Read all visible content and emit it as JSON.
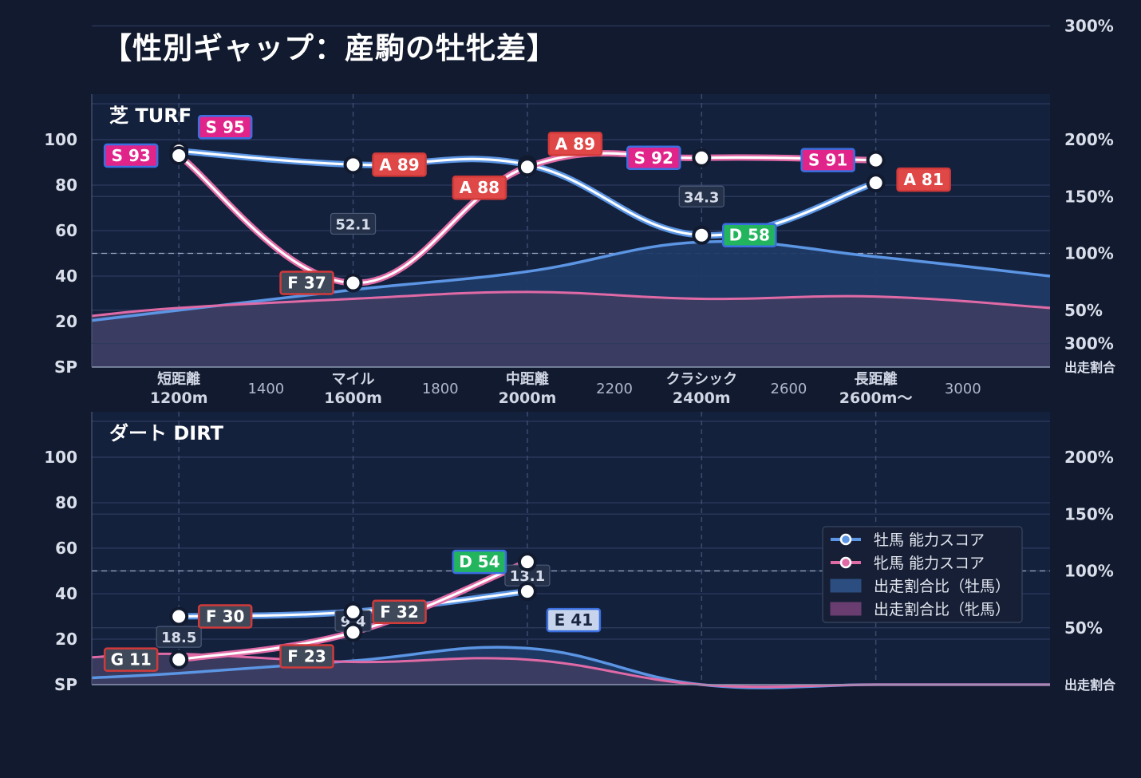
{
  "title": "【性別ギャップ：産駒の牡牝差】",
  "colors": {
    "background": "#111a2e",
    "panel": "#13213d",
    "male_line": "#5b95e3",
    "female_line": "#e06aa6",
    "male_area": "#1f3a66",
    "female_area": "#3e3d62",
    "rank_S": "#e0248a",
    "rank_A": "#e04848",
    "rank_D": "#22b55e",
    "rank_E": "#c7d4ec",
    "rank_F": "#3f4959",
    "rank_G": "#3f4959"
  },
  "legend": {
    "items": [
      {
        "label": "牡馬 能力スコア",
        "kind": "line",
        "color": "#5b95e3"
      },
      {
        "label": "牝馬 能力スコア",
        "kind": "line",
        "color": "#e06aa6"
      },
      {
        "label": "出走割合比（牡馬）",
        "kind": "area",
        "color": "#2c4d80"
      },
      {
        "label": "出走割合比（牝馬）",
        "kind": "area",
        "color": "#6a3d70"
      }
    ]
  },
  "chart_data": [
    {
      "type": "line",
      "panel_title": "芝 TURF",
      "x_ticks_major": [
        {
          "x": 1200,
          "line1": "短距離",
          "line2": "1200m"
        },
        {
          "x": 1600,
          "line1": "マイル",
          "line2": "1600m"
        },
        {
          "x": 2000,
          "line1": "中距離",
          "line2": "2000m"
        },
        {
          "x": 2400,
          "line1": "クラシック",
          "line2": "2400m"
        },
        {
          "x": 2800,
          "line1": "長距離",
          "line2": "2600m〜"
        }
      ],
      "x_ticks_minor": [
        {
          "x": 1400,
          "label": "1400"
        },
        {
          "x": 1800,
          "label": "1800"
        },
        {
          "x": 2200,
          "label": "2200"
        },
        {
          "x": 2600,
          "label": "2600"
        },
        {
          "x": 3000,
          "label": "3000"
        }
      ],
      "xlim": [
        1000,
        3200
      ],
      "ylim": [
        0,
        120
      ],
      "y_ticks": [
        "SP",
        "20",
        "40",
        "60",
        "80",
        "100"
      ],
      "y2_ticks": [
        {
          "value": 300,
          "label": "300%"
        },
        {
          "value": 200,
          "label": "200%"
        },
        {
          "value": 150,
          "label": "150%"
        },
        {
          "value": 100,
          "label": "100%"
        },
        {
          "value": 50,
          "label": "50%"
        }
      ],
      "y2_label": "出走割合",
      "reference_line_y2": 100,
      "male_score": {
        "x": [
          1200,
          1600,
          2000,
          2400,
          2800
        ],
        "values": [
          95,
          89,
          89,
          58,
          81
        ],
        "ranks": [
          "S",
          "A",
          "A",
          "D",
          "A"
        ]
      },
      "female_score": {
        "x": [
          1200,
          1600,
          2000,
          2400,
          2800
        ],
        "values": [
          93,
          37,
          88,
          92,
          91
        ],
        "ranks": [
          "S",
          "F",
          "A",
          "S",
          "S"
        ]
      },
      "male_ratio": {
        "x": [
          1000,
          1200,
          1600,
          2000,
          2400,
          2800,
          3200
        ],
        "values": [
          41,
          50,
          68,
          84,
          110,
          97,
          80
        ]
      },
      "female_ratio": {
        "x": [
          1000,
          1200,
          1600,
          2000,
          2400,
          2800,
          3200
        ],
        "values": [
          45,
          52,
          60,
          66,
          60,
          62,
          52
        ]
      },
      "gap_labels": [
        {
          "x": 1600,
          "y": 63,
          "text": "52.1"
        },
        {
          "x": 2400,
          "y": 75,
          "text": "34.3"
        }
      ]
    },
    {
      "type": "line",
      "panel_title": "ダート DIRT",
      "xlim": [
        1000,
        3200
      ],
      "ylim": [
        0,
        120
      ],
      "y_ticks": [
        "SP",
        "20",
        "40",
        "60",
        "80",
        "100"
      ],
      "y2_ticks": [
        {
          "value": 300,
          "label": "300%"
        },
        {
          "value": 200,
          "label": "200%"
        },
        {
          "value": 150,
          "label": "150%"
        },
        {
          "value": 100,
          "label": "100%"
        },
        {
          "value": 50,
          "label": "50%"
        }
      ],
      "y2_label": "出走割合",
      "reference_line_y2": 100,
      "male_score": {
        "x": [
          1200,
          1600,
          2000
        ],
        "values": [
          30,
          32,
          41
        ],
        "ranks": [
          "F",
          "F",
          "E"
        ]
      },
      "female_score": {
        "x": [
          1200,
          1600,
          2000
        ],
        "values": [
          11,
          23,
          54
        ],
        "ranks": [
          "G",
          "F",
          "D"
        ]
      },
      "male_ratio": {
        "x": [
          1000,
          1200,
          1600,
          2000,
          2400,
          2800,
          3200
        ],
        "values": [
          6,
          10,
          21,
          32,
          0,
          0,
          0
        ]
      },
      "female_ratio": {
        "x": [
          1000,
          1200,
          1600,
          2000,
          2400,
          2800,
          3200
        ],
        "values": [
          24,
          27,
          20,
          22,
          0,
          0,
          0
        ]
      },
      "gap_labels": [
        {
          "x": 1200,
          "y": 21,
          "text": "18.5"
        },
        {
          "x": 1600,
          "y": 28,
          "text": "9.4"
        },
        {
          "x": 2000,
          "y": 48,
          "text": "13.1"
        }
      ]
    }
  ]
}
